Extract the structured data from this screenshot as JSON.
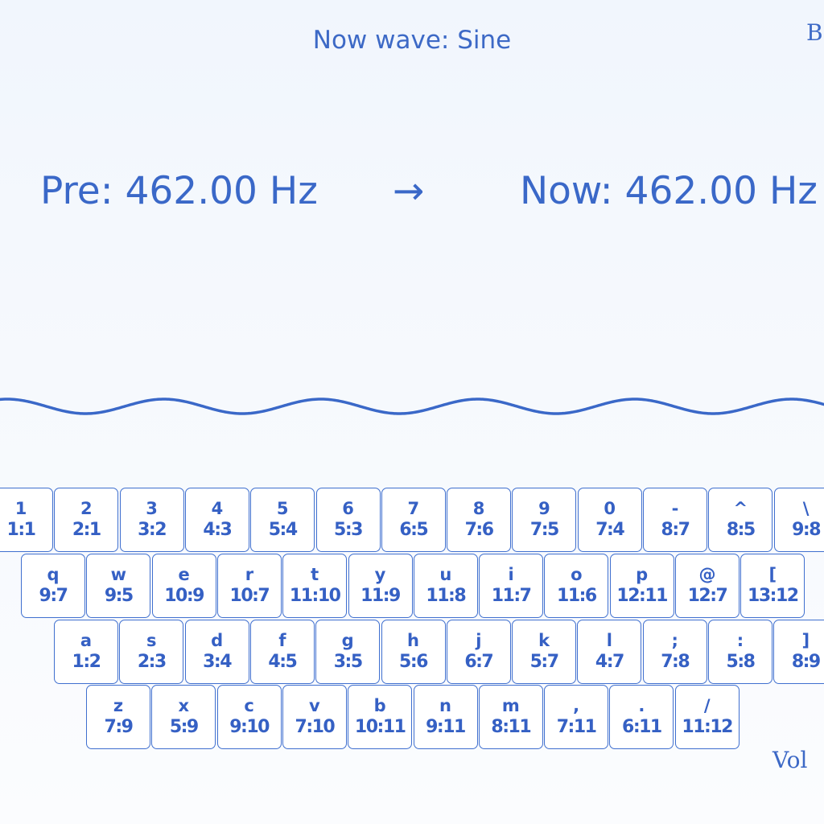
{
  "header": {
    "wave_label": "Now wave: Sine",
    "corner_label": "B"
  },
  "frequency": {
    "previous": "Pre: 462.00 Hz",
    "arrow": "→",
    "current": "Now: 462.00 Hz"
  },
  "footer": {
    "volume_label": "Vol"
  },
  "colors": {
    "accent": "#3a68c8",
    "key_border": "#3f6fcf",
    "key_background": "#ffffff",
    "wave_stroke": "#3a68c8"
  },
  "waveform": {
    "type": "sine"
  },
  "keyboard": {
    "rows": [
      {
        "keys": [
          {
            "char": "1",
            "ratio": "1:1"
          },
          {
            "char": "2",
            "ratio": "2:1"
          },
          {
            "char": "3",
            "ratio": "3:2"
          },
          {
            "char": "4",
            "ratio": "4:3"
          },
          {
            "char": "5",
            "ratio": "5:4"
          },
          {
            "char": "6",
            "ratio": "5:3"
          },
          {
            "char": "7",
            "ratio": "6:5"
          },
          {
            "char": "8",
            "ratio": "7:6"
          },
          {
            "char": "9",
            "ratio": "7:5"
          },
          {
            "char": "0",
            "ratio": "7:4"
          },
          {
            "char": "-",
            "ratio": "8:7"
          },
          {
            "char": "^",
            "ratio": "8:5"
          },
          {
            "char": "\\",
            "ratio": "9:8"
          }
        ]
      },
      {
        "keys": [
          {
            "char": "q",
            "ratio": "9:7"
          },
          {
            "char": "w",
            "ratio": "9:5"
          },
          {
            "char": "e",
            "ratio": "10:9"
          },
          {
            "char": "r",
            "ratio": "10:7"
          },
          {
            "char": "t",
            "ratio": "11:10"
          },
          {
            "char": "y",
            "ratio": "11:9"
          },
          {
            "char": "u",
            "ratio": "11:8"
          },
          {
            "char": "i",
            "ratio": "11:7"
          },
          {
            "char": "o",
            "ratio": "11:6"
          },
          {
            "char": "p",
            "ratio": "12:11"
          },
          {
            "char": "@",
            "ratio": "12:7"
          },
          {
            "char": "[",
            "ratio": "13:12"
          }
        ]
      },
      {
        "keys": [
          {
            "char": "a",
            "ratio": "1:2"
          },
          {
            "char": "s",
            "ratio": "2:3"
          },
          {
            "char": "d",
            "ratio": "3:4"
          },
          {
            "char": "f",
            "ratio": "4:5"
          },
          {
            "char": "g",
            "ratio": "3:5"
          },
          {
            "char": "h",
            "ratio": "5:6"
          },
          {
            "char": "j",
            "ratio": "6:7"
          },
          {
            "char": "k",
            "ratio": "5:7"
          },
          {
            "char": "l",
            "ratio": "4:7"
          },
          {
            "char": ";",
            "ratio": "7:8"
          },
          {
            "char": ":",
            "ratio": "5:8"
          },
          {
            "char": "]",
            "ratio": "8:9"
          }
        ]
      },
      {
        "keys": [
          {
            "char": "z",
            "ratio": "7:9"
          },
          {
            "char": "x",
            "ratio": "5:9"
          },
          {
            "char": "c",
            "ratio": "9:10"
          },
          {
            "char": "v",
            "ratio": "7:10"
          },
          {
            "char": "b",
            "ratio": "10:11"
          },
          {
            "char": "n",
            "ratio": "9:11"
          },
          {
            "char": "m",
            "ratio": "8:11"
          },
          {
            "char": ",",
            "ratio": "7:11"
          },
          {
            "char": ".",
            "ratio": "6:11"
          },
          {
            "char": "/",
            "ratio": "11:12"
          }
        ]
      }
    ]
  }
}
